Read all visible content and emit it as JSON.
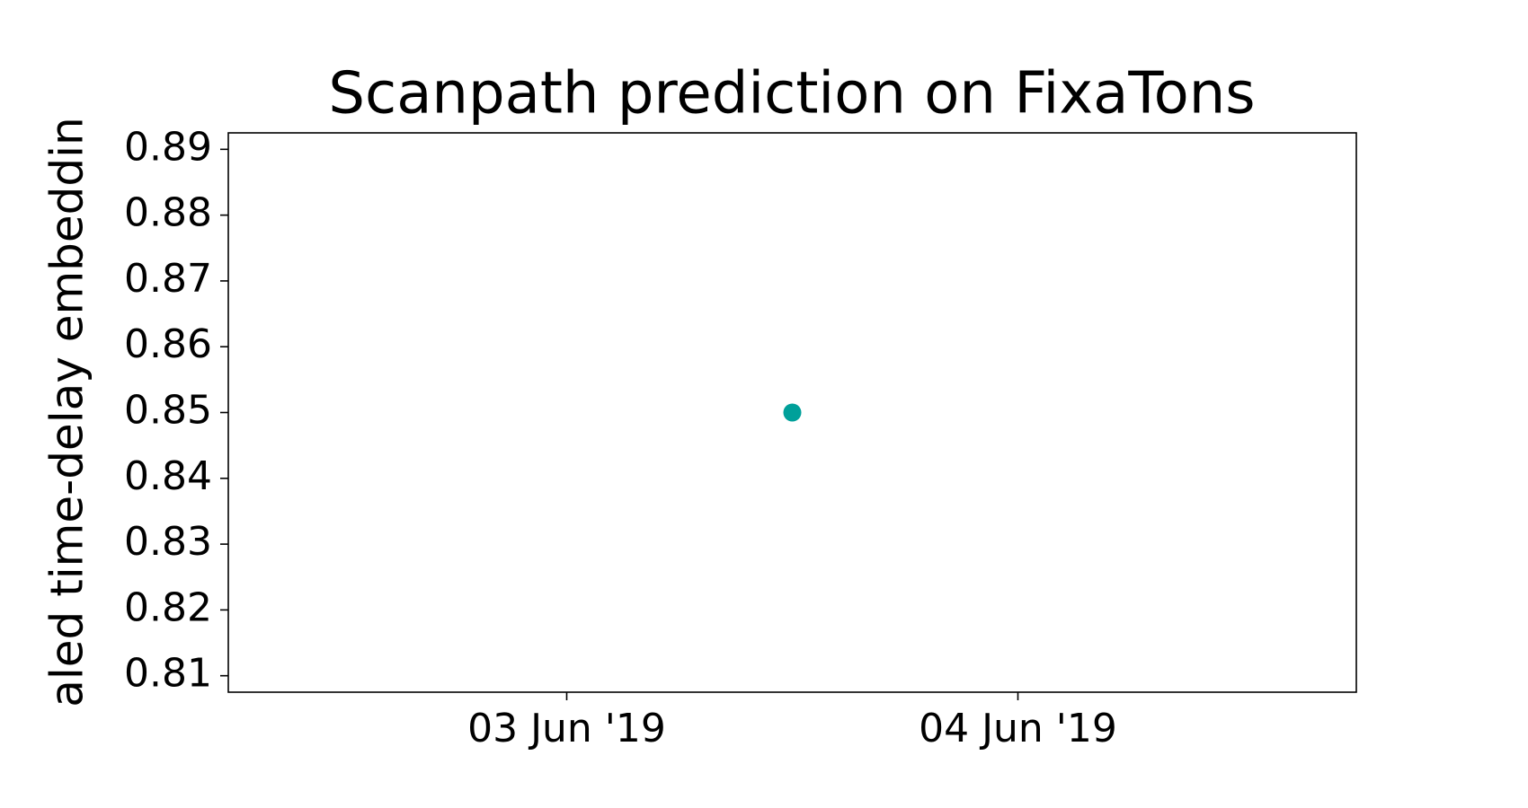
{
  "chart_data": {
    "type": "scatter",
    "title": "Scanpath prediction on FixaTons",
    "y_label": "aled time-delay embeddin",
    "series": [
      {
        "color": "#00a09a",
        "x": [
          "2019-06-03T12:00"
        ],
        "values": [
          0.85
        ]
      }
    ],
    "xlim": [
      "2019-06-02T06:00",
      "2019-06-04T18:00"
    ],
    "xticks": [
      {
        "value": "2019-06-03T00:00",
        "label": "03 Jun '19"
      },
      {
        "value": "2019-06-04T00:00",
        "label": "04 Jun '19"
      }
    ],
    "ylim": [
      0.8075,
      0.8925
    ],
    "yticks": [
      0.81,
      0.82,
      0.83,
      0.84,
      0.85,
      0.86,
      0.87,
      0.88,
      0.89
    ],
    "grid": false
  }
}
